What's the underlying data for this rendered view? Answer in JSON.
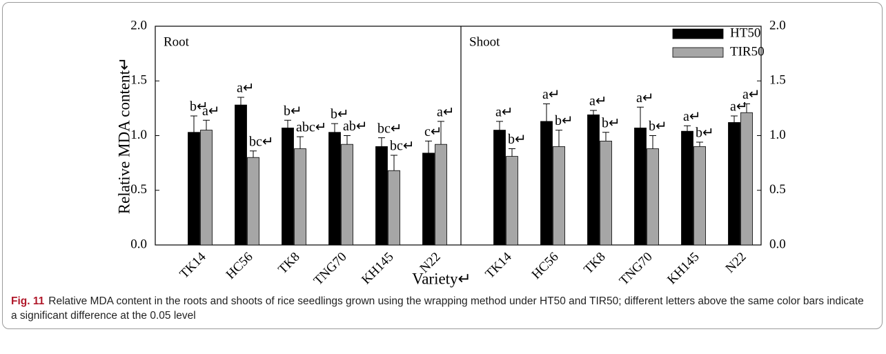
{
  "chart_data": [
    {
      "type": "bar",
      "title": "Root",
      "ylabel": "Relative MDA content↵",
      "xlabel": "Variety↵",
      "categories": [
        "TK14",
        "HC56",
        "TK8",
        "TNG70",
        "KH145",
        "N22"
      ],
      "ylim": [
        0,
        2
      ],
      "yticks": [
        {
          "value": 0,
          "label": "0.0"
        },
        0.5,
        {
          "value": 1,
          "label": "1.0"
        },
        1.5,
        {
          "value": 2,
          "label": "2.0"
        }
      ],
      "series": [
        {
          "color": "#000000",
          "values": [
            1.03,
            1.28,
            1.07,
            1.03,
            0.9,
            0.84
          ],
          "errors": [
            0.15,
            0.07,
            0.07,
            0.08,
            0.08,
            0.11
          ],
          "value_labels": [
            "b↵",
            "a↵",
            "b↵",
            "b↵",
            "bc↵",
            "c↵"
          ]
        },
        {
          "color": "#a6a6a6",
          "values": [
            1.05,
            0.8,
            0.88,
            0.92,
            0.68,
            0.92
          ],
          "errors": [
            0.09,
            0.06,
            0.11,
            0.08,
            0.14,
            0.21
          ],
          "value_labels": [
            "a↵",
            "bc↵",
            "abc↵",
            "ab↵",
            "bc↵",
            "a↵"
          ]
        }
      ]
    },
    {
      "type": "bar",
      "title": "Shoot",
      "categories": [
        "TK14",
        "HC56",
        "TK8",
        "TNG70",
        "KH145",
        "N22"
      ],
      "y2lim": [
        0,
        2
      ],
      "y2ticks": [
        {
          "value": 0,
          "label": "0.0"
        },
        0.5,
        {
          "value": 1,
          "label": "1.0"
        },
        1.5,
        {
          "value": 2,
          "label": "2.0"
        }
      ],
      "series": [
        {
          "name": "HT50",
          "color": "#000000",
          "values": [
            1.05,
            1.13,
            1.19,
            1.07,
            1.04,
            1.12
          ],
          "errors": [
            0.08,
            0.16,
            0.04,
            0.19,
            0.05,
            0.06
          ],
          "value_labels": [
            "a↵",
            "a↵",
            "a↵",
            "a↵",
            "a↵",
            "a↵"
          ]
        },
        {
          "name": "TIR50",
          "color": "#a6a6a6",
          "values": [
            0.81,
            0.9,
            0.95,
            0.88,
            0.9,
            1.21
          ],
          "errors": [
            0.07,
            0.15,
            0.08,
            0.12,
            0.04,
            0.08
          ],
          "value_labels": [
            "b↵",
            "b↵",
            "b↵",
            "b↵",
            "b↵",
            "a↵"
          ]
        }
      ]
    }
  ],
  "caption": {
    "label": "Fig. 11",
    "text": "Relative MDA content in the roots and shoots of rice seedlings grown using the wrapping method under HT50 and TIR50; different letters above the same color bars indicate a significant difference at the 0.05 level"
  }
}
